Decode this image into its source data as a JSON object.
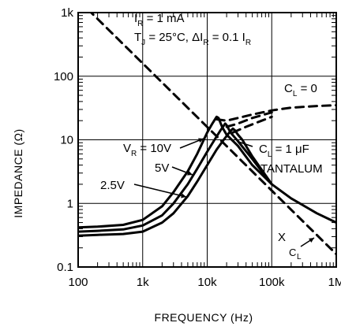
{
  "chart_data": {
    "type": "line",
    "title": "",
    "xlabel": "FREQUENCY (Hz)",
    "ylabel": "IMPEDANCE (Ω)",
    "x_scale": "log",
    "y_scale": "log",
    "xlim": [
      100,
      1000000
    ],
    "ylim": [
      0.1,
      1000
    ],
    "x_ticks": [
      100,
      1000,
      10000,
      100000,
      1000000
    ],
    "x_tick_labels": [
      "100",
      "1k",
      "10k",
      "100k",
      "1M"
    ],
    "y_ticks": [
      0.1,
      1,
      10,
      100,
      1000
    ],
    "y_tick_labels": [
      "0.1",
      "1",
      "10",
      "100",
      "1k"
    ],
    "grid": true,
    "annotations": {
      "conditions_line1": "I",
      "conditions_line1_sub": "R",
      "conditions_line1_rest": " = 1 mA",
      "conditions_line2": "T",
      "conditions_line2_sub": "J",
      "conditions_line2_rest": " = 25°C, ΔI",
      "conditions_line2_sub2": "R",
      "conditions_line2_rest2": " = 0.1 I",
      "conditions_line2_sub3": "R",
      "cl0_main": "C",
      "cl0_sub": "L",
      "cl0_rest": " = 0",
      "cl1_main": "C",
      "cl1_sub": "L",
      "cl1_rest": " = 1 μF",
      "tantalum": "TANTALUM",
      "vr_main": "V",
      "vr_sub": "R",
      "vr_rest": " = 10V",
      "v5": "5V",
      "v25": "2.5V",
      "xc_main": "X",
      "xc_sub": "C",
      "xc_sub2": "L"
    },
    "series": [
      {
        "style": "solid",
        "x": [
          100,
          200,
          500,
          1000,
          2000,
          3000,
          5000,
          7000,
          10000,
          12000,
          14000,
          15000,
          17000,
          20000,
          30000,
          50000,
          100000,
          200000,
          500000,
          1000000
        ],
        "y": [
          0.42,
          0.43,
          0.46,
          0.55,
          0.9,
          1.5,
          3.2,
          6.0,
          13,
          18,
          23,
          22,
          16,
          12,
          8,
          4,
          2,
          1.2,
          0.7,
          0.5
        ]
      },
      {
        "style": "solid",
        "x": [
          100,
          200,
          500,
          1000,
          2000,
          3000,
          5000,
          7000,
          10000,
          13000,
          16000,
          19000,
          20000,
          23000,
          30000,
          50000,
          100000
        ],
        "y": [
          0.36,
          0.37,
          0.39,
          0.45,
          0.65,
          1.0,
          2.0,
          3.5,
          6.5,
          10,
          14,
          18,
          17,
          13,
          9.5,
          5,
          2
        ]
      },
      {
        "style": "solid",
        "x": [
          100,
          200,
          500,
          1000,
          2000,
          3000,
          5000,
          7000,
          10000,
          14000,
          18000,
          22000,
          25000,
          27000,
          30000,
          35000,
          50000,
          100000
        ],
        "y": [
          0.31,
          0.32,
          0.33,
          0.36,
          0.5,
          0.7,
          1.3,
          2.2,
          4.0,
          7.0,
          10,
          13,
          15,
          14,
          12,
          10,
          5.5,
          2
        ]
      },
      {
        "style": "dashed",
        "name": "C = 0",
        "x": [
          14000,
          20000,
          30000,
          50000,
          100000,
          200000,
          500000,
          1000000
        ],
        "y": [
          21,
          20,
          22,
          25,
          29,
          32,
          34,
          35
        ]
      },
      {
        "style": "dashed",
        "x": [
          20000,
          30000,
          50000,
          100000
        ],
        "y": [
          16,
          18,
          22,
          27
        ]
      },
      {
        "style": "dashed",
        "x": [
          25000,
          40000,
          70000,
          100000
        ],
        "y": [
          13,
          16,
          20,
          23
        ]
      },
      {
        "style": "dashed",
        "name": "XC",
        "x": [
          100,
          1000,
          10000,
          100000,
          1000000
        ],
        "y": [
          1590,
          159,
          15.9,
          1.59,
          0.159
        ]
      }
    ]
  }
}
